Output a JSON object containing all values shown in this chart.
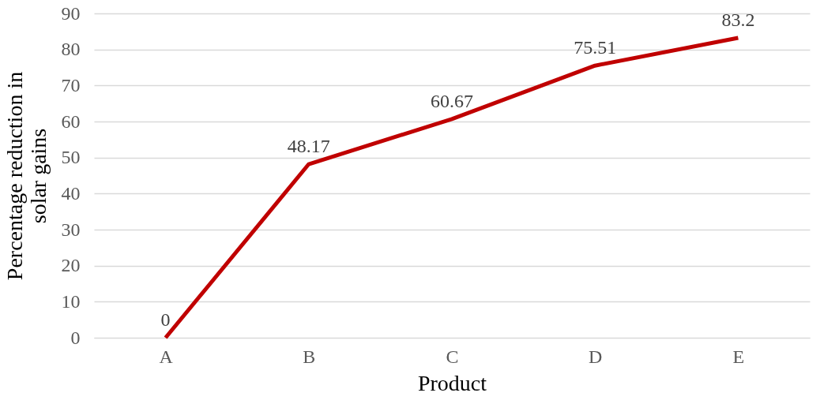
{
  "chart_data": {
    "type": "line",
    "xlabel": "Product",
    "ylabel": "Percentage reduction in solar gains",
    "categories": [
      "A",
      "B",
      "C",
      "D",
      "E"
    ],
    "series": [
      {
        "color": "#c00000",
        "values": [
          0,
          48.17,
          60.67,
          75.51,
          83.2
        ]
      }
    ],
    "ylim": [
      0,
      90
    ],
    "yticks": [
      0,
      10,
      20,
      30,
      40,
      50,
      60,
      70,
      80,
      90
    ],
    "grid": "y",
    "data_labels": true,
    "legend": false,
    "marker": "none",
    "line_style": "solid"
  }
}
